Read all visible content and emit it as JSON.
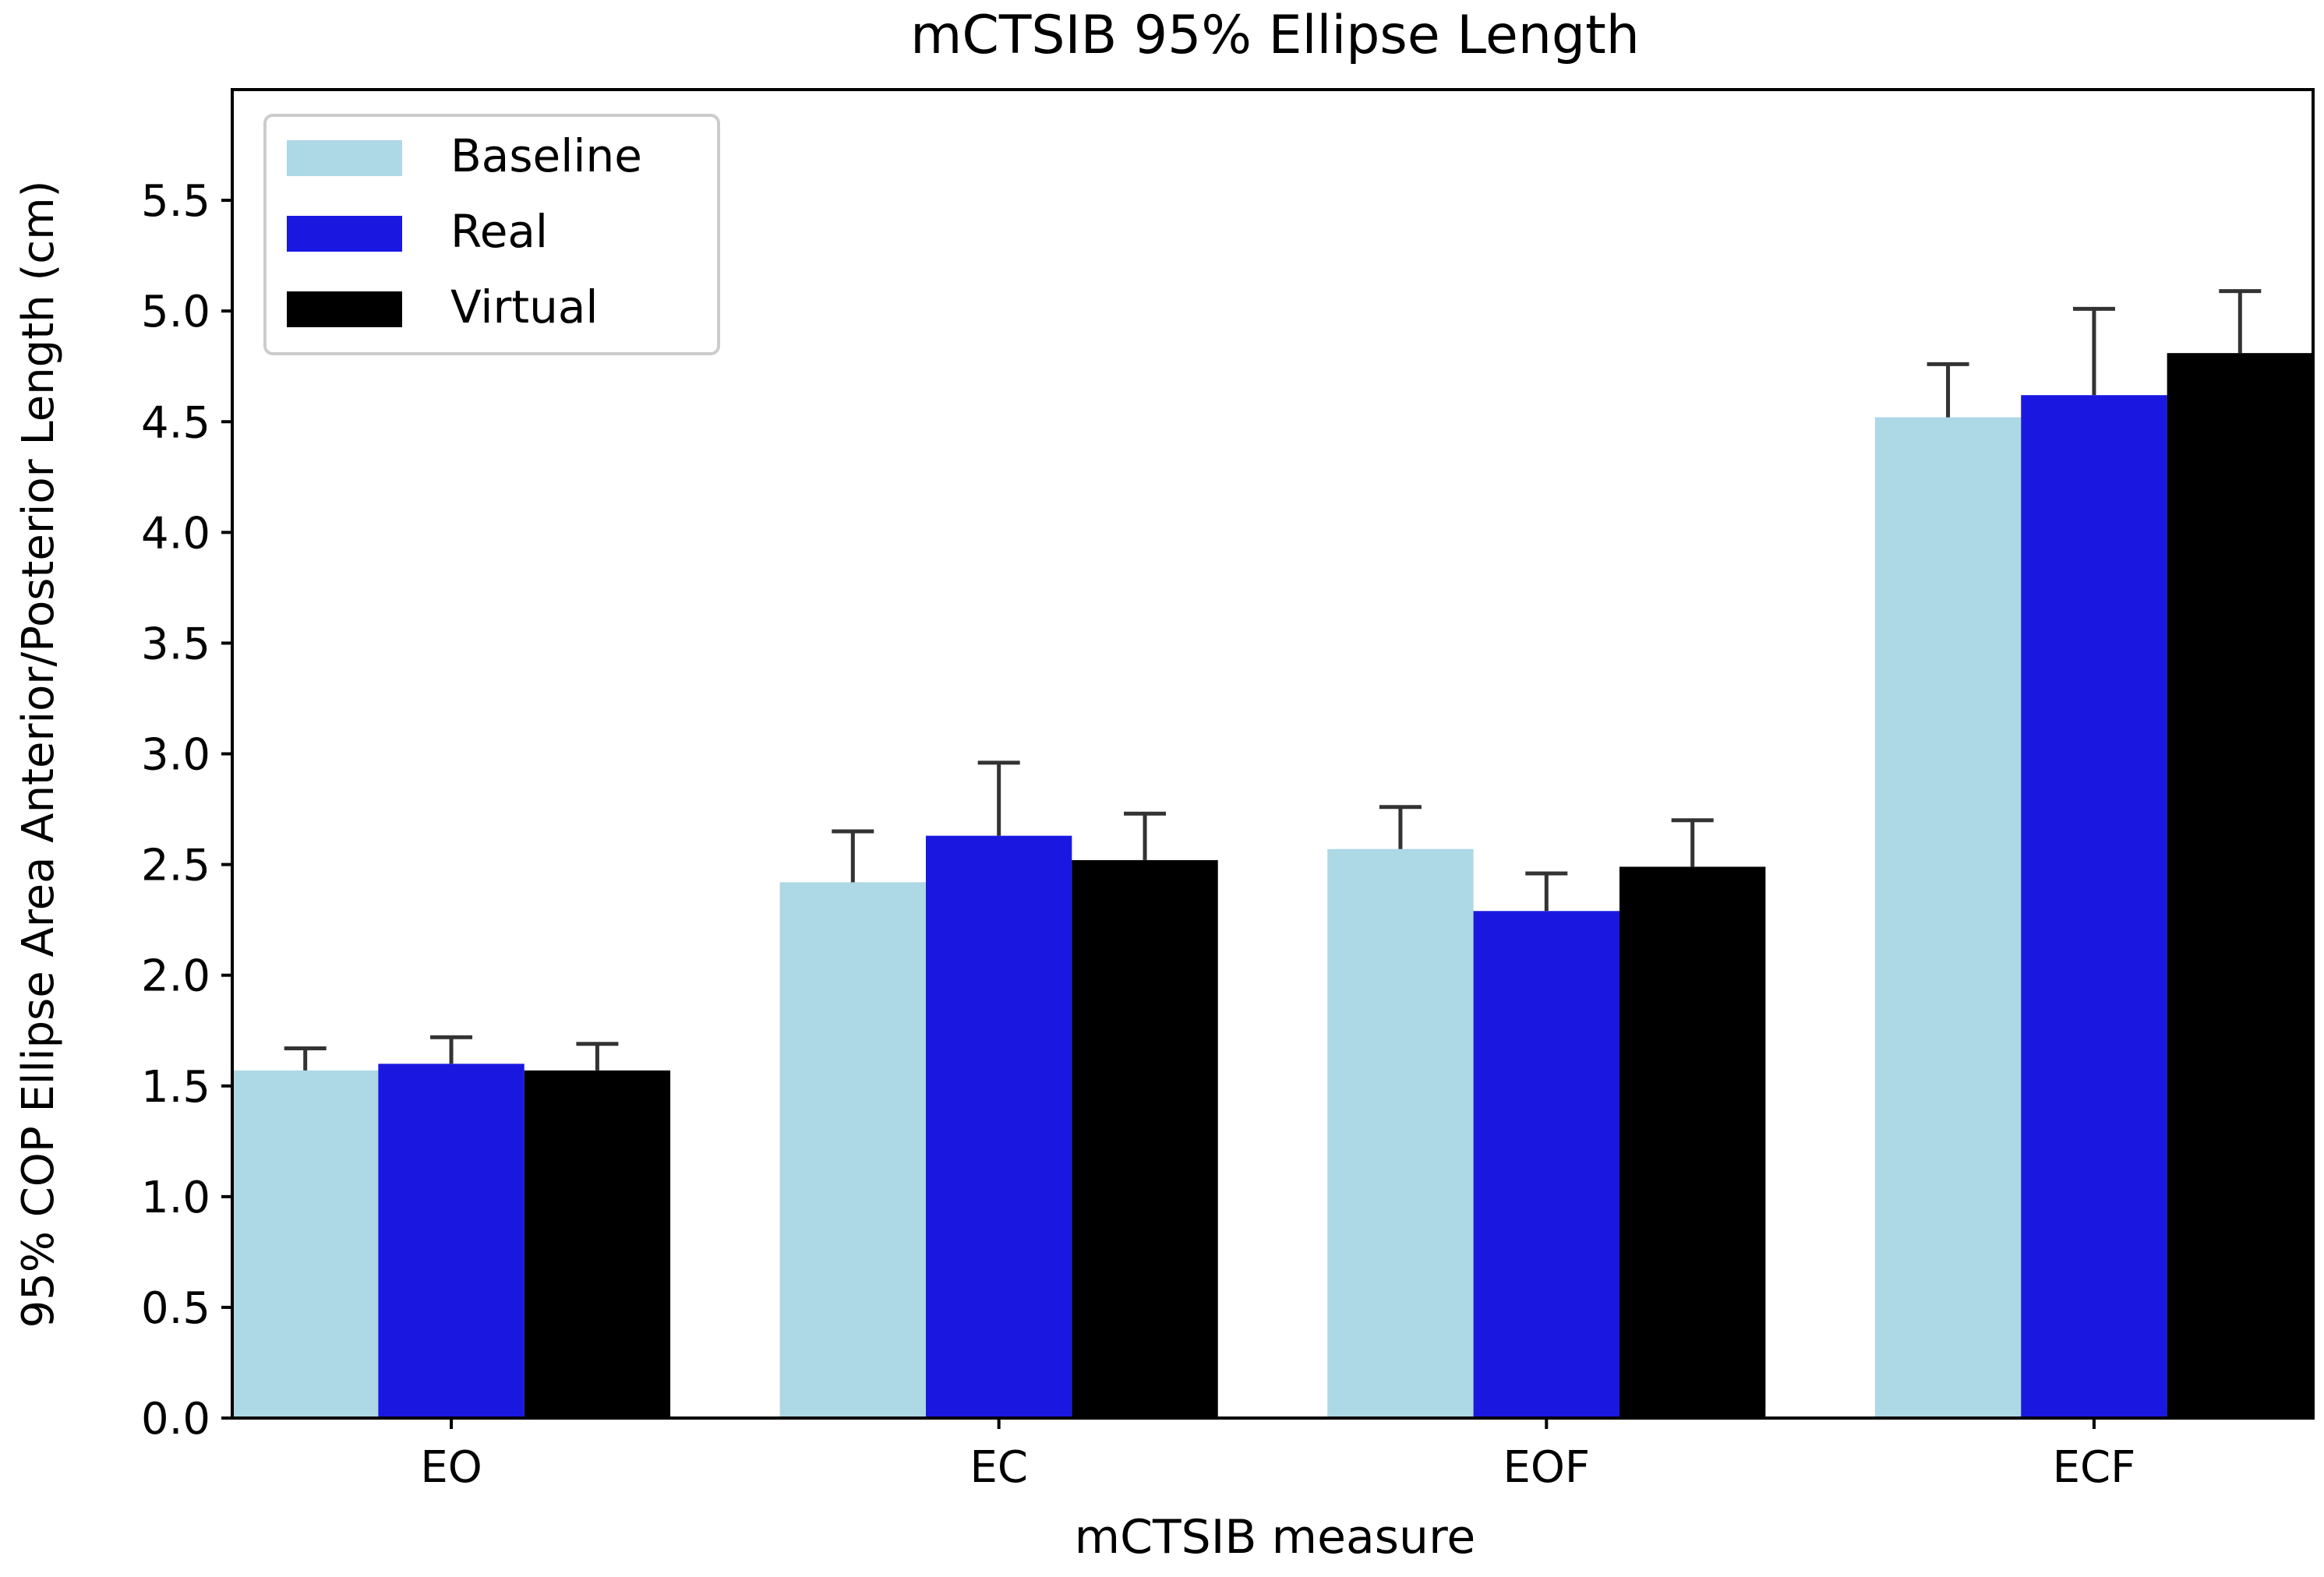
{
  "chart_data": {
    "type": "bar",
    "title": "mCTSIB 95% Ellipse Length",
    "xlabel": "mCTSIB measure",
    "ylabel": "95% COP Ellipse Area Anterior/Posterior Length (cm)",
    "categories": [
      "EO",
      "EC",
      "EOF",
      "ECF"
    ],
    "ylim": [
      0,
      6.0
    ],
    "yticks": [
      0.0,
      0.5,
      1.0,
      1.5,
      2.0,
      2.5,
      3.0,
      3.5,
      4.0,
      4.5,
      5.0,
      5.5
    ],
    "ytick_labels": [
      "0.0",
      "0.5",
      "1.0",
      "1.5",
      "2.0",
      "2.5",
      "3.0",
      "3.5",
      "4.0",
      "4.5",
      "5.0",
      "5.5"
    ],
    "grid": false,
    "legend_position": "top-left",
    "series": [
      {
        "name": "Baseline",
        "color": "#add8e6",
        "values": [
          1.57,
          2.42,
          2.57,
          4.52
        ],
        "errors": [
          0.1,
          0.23,
          0.19,
          0.24
        ]
      },
      {
        "name": "Real",
        "color": "#1a18e0",
        "values": [
          1.6,
          2.63,
          2.29,
          4.62
        ],
        "errors": [
          0.12,
          0.33,
          0.17,
          0.39
        ]
      },
      {
        "name": "Virtual",
        "color": "#000000",
        "values": [
          1.57,
          2.52,
          2.49,
          4.81
        ],
        "errors": [
          0.12,
          0.21,
          0.21,
          0.28
        ]
      }
    ]
  }
}
